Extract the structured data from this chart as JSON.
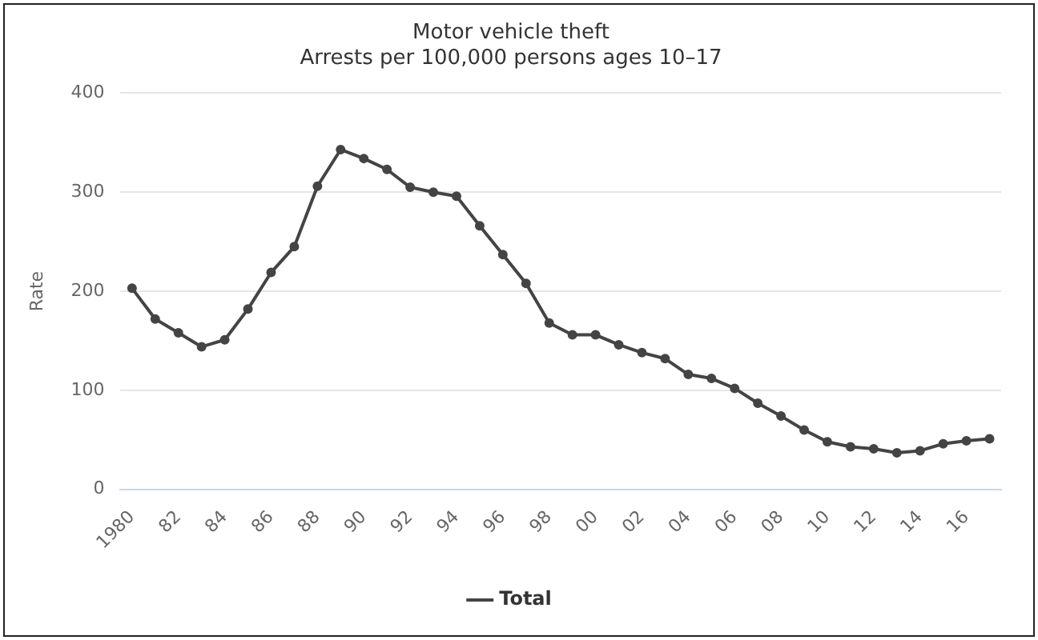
{
  "chart_data": {
    "type": "line",
    "title": "Motor vehicle theft",
    "subtitle": "Arrests per 100,000 persons ages 10–17",
    "ylabel": "Rate",
    "categories": [
      "1980",
      null,
      "82",
      null,
      "84",
      null,
      "86",
      null,
      "88",
      null,
      "90",
      null,
      "92",
      null,
      "94",
      null,
      "96",
      null,
      "98",
      null,
      "00",
      null,
      "02",
      null,
      "04",
      null,
      "06",
      null,
      "08",
      null,
      "10",
      null,
      "12",
      null,
      "14",
      null,
      "16",
      null
    ],
    "series": [
      {
        "name": "Total",
        "color": "#444444",
        "values": [
          203,
          172,
          158,
          144,
          151,
          182,
          219,
          245,
          306,
          343,
          334,
          323,
          305,
          300,
          296,
          266,
          237,
          208,
          168,
          156,
          156,
          146,
          138,
          132,
          116,
          112,
          102,
          87,
          74,
          60,
          48,
          43,
          41,
          37,
          39,
          46,
          49,
          51
        ]
      }
    ],
    "ylim": [
      0,
      400
    ],
    "yticks": [
      0,
      100,
      200,
      300,
      400
    ],
    "grid": "y",
    "legend": "bottom",
    "marker": "circle",
    "line_style": "solid"
  }
}
